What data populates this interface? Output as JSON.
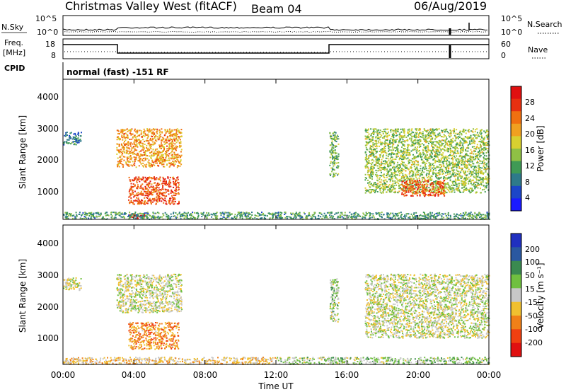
{
  "header": {
    "station": "Christmas Valley West (fitACF)",
    "beam": "Beam 04",
    "date": "06/Aug/2019"
  },
  "summary": {
    "nsky_label": "N.Sky",
    "nsearch_label": "N.Search",
    "freq_label_line1": "Freq.",
    "freq_label_line2": "[MHz]",
    "nave_label": "Nave",
    "cpid_label": "CPID",
    "cpid_value": "normal (fast) -151 RF",
    "noise_ticks_left": [
      "10^5",
      "10^0"
    ],
    "noise_ticks_right": [
      "10^5",
      "10^0"
    ],
    "freq_ticks": [
      "18",
      "8"
    ],
    "nave_ticks": [
      "60",
      "0"
    ]
  },
  "x_axis": {
    "label": "Time UT",
    "ticks": [
      "00:00",
      "04:00",
      "08:00",
      "12:00",
      "16:00",
      "20:00",
      "00:00"
    ]
  },
  "power_panel": {
    "ylabel": "Slant Range [km]",
    "yticks": [
      "1000",
      "2000",
      "3000",
      "4000"
    ],
    "colorbar_label": "Power [dB]",
    "colorbar_ticks": [
      "4",
      "8",
      "12",
      "16",
      "20",
      "24",
      "28"
    ],
    "colors": [
      "#1a1aff",
      "#1c46c8",
      "#2e7a8a",
      "#3f9a55",
      "#8fc045",
      "#d8d030",
      "#f0a020",
      "#f07010",
      "#e83010",
      "#e01010"
    ]
  },
  "velocity_panel": {
    "ylabel": "Slant Range [km]",
    "yticks": [
      "1000",
      "2000",
      "3000",
      "4000"
    ],
    "colorbar_label": "Velocity [m s⁻¹]",
    "colorbar_ticks": [
      "200",
      "100",
      "50",
      "15",
      "-15",
      "-50",
      "-100",
      "-200"
    ],
    "colors": [
      "#2030c0",
      "#2a58a0",
      "#3a8a50",
      "#70c040",
      "#c8c8c8",
      "#f0c030",
      "#f08018",
      "#f04010",
      "#e01010"
    ]
  },
  "chart_data": [
    {
      "type": "heatmap",
      "title": "Power",
      "xlabel": "Time UT",
      "ylabel": "Slant Range [km]",
      "xlim": [
        "00:00",
        "24:00"
      ],
      "ylim": [
        180,
        4500
      ],
      "zlabel": "Power [dB]",
      "zlim": [
        0,
        30
      ],
      "regions": [
        {
          "t_start": "00:00",
          "t_end": "01:00",
          "range_min": 2500,
          "range_max": 2900,
          "value": 8
        },
        {
          "t_start": "03:00",
          "t_end": "06:40",
          "range_min": 1800,
          "range_max": 3000,
          "value": 20
        },
        {
          "t_start": "03:40",
          "t_end": "06:30",
          "range_min": 650,
          "range_max": 1500,
          "value": 24
        },
        {
          "t_start": "15:00",
          "t_end": "15:30",
          "range_min": 1500,
          "range_max": 2900,
          "value": 12
        },
        {
          "t_start": "17:00",
          "t_end": "23:59",
          "range_min": 1000,
          "range_max": 3000,
          "value": 14
        },
        {
          "t_start": "19:00",
          "t_end": "21:30",
          "range_min": 900,
          "range_max": 1400,
          "value": 24
        },
        {
          "t_start": "03:40",
          "t_end": "04:40",
          "range_min": 200,
          "range_max": 350,
          "value": 26
        },
        {
          "t_start": "00:00",
          "t_end": "24:00",
          "range_min": 180,
          "range_max": 400,
          "value": 10
        }
      ]
    },
    {
      "type": "heatmap",
      "title": "Velocity",
      "xlabel": "Time UT",
      "ylabel": "Slant Range [km]",
      "xlim": [
        "00:00",
        "24:00"
      ],
      "ylim": [
        180,
        4500
      ],
      "zlabel": "Velocity [m s⁻¹]",
      "zlim": [
        -200,
        200
      ],
      "regions": [
        {
          "t_start": "00:00",
          "t_end": "01:00",
          "range_min": 2500,
          "range_max": 2900,
          "value": 0
        },
        {
          "t_start": "03:00",
          "t_end": "06:40",
          "range_min": 1800,
          "range_max": 3000,
          "value": 0
        },
        {
          "t_start": "03:40",
          "t_end": "06:30",
          "range_min": 650,
          "range_max": 1500,
          "value": -80
        },
        {
          "t_start": "15:00",
          "t_end": "15:30",
          "range_min": 1500,
          "range_max": 2900,
          "value": 20
        },
        {
          "t_start": "17:00",
          "t_end": "23:59",
          "range_min": 1000,
          "range_max": 3000,
          "value": 0
        },
        {
          "t_start": "00:00",
          "t_end": "12:00",
          "range_min": 180,
          "range_max": 400,
          "value": -40
        },
        {
          "t_start": "12:00",
          "t_end": "24:00",
          "range_min": 180,
          "range_max": 400,
          "value": 30
        }
      ]
    }
  ]
}
